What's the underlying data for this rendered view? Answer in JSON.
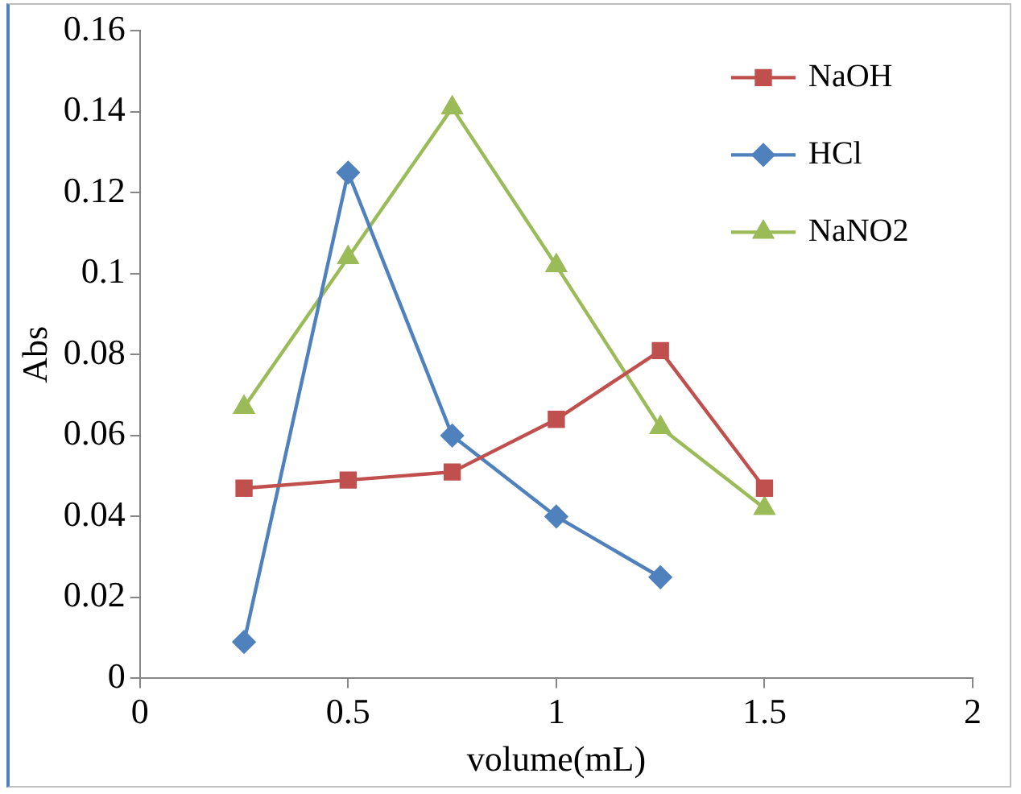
{
  "chart_data": {
    "type": "line",
    "xlabel": "volume(mL)",
    "ylabel": "Abs",
    "x": [
      0.25,
      0.5,
      0.75,
      1,
      1.25,
      1.5
    ],
    "series": [
      {
        "name": "NaOH",
        "color": "#c0504d",
        "marker": "square",
        "values": [
          0.047,
          0.049,
          0.051,
          0.064,
          0.081,
          0.047
        ]
      },
      {
        "name": "HCl",
        "color": "#4f81bd",
        "marker": "diamond",
        "values": [
          0.009,
          0.125,
          0.06,
          0.04,
          0.025,
          null
        ]
      },
      {
        "name": "NaNO2",
        "color": "#9bbb59",
        "marker": "triangle",
        "values": [
          0.067,
          0.104,
          0.141,
          0.102,
          0.062,
          0.042
        ]
      }
    ],
    "xlim": [
      0,
      2
    ],
    "xticks": [
      0,
      0.5,
      1,
      1.5,
      2
    ],
    "ylim": [
      0,
      0.16
    ],
    "yticks": [
      0,
      0.02,
      0.04,
      0.06,
      0.08,
      0.1,
      0.12,
      0.14,
      0.16
    ],
    "grid": false,
    "legend": "top right",
    "line_style": "solid"
  }
}
